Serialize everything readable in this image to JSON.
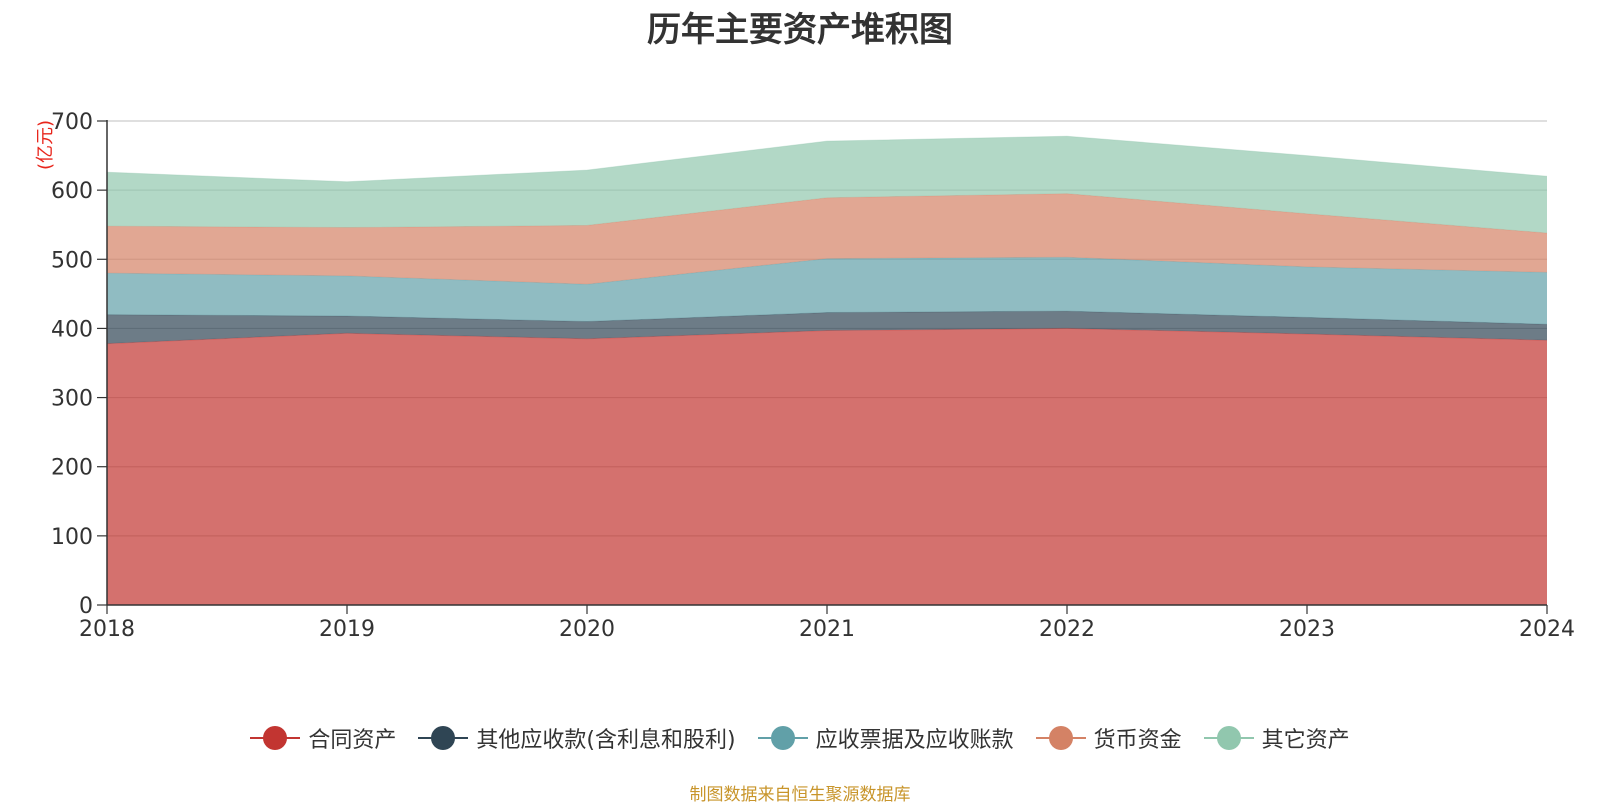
{
  "chart_data": {
    "type": "area",
    "stacked": true,
    "title": "历年主要资产堆积图",
    "unit_label": "(亿元)",
    "x": [
      "2018",
      "2019",
      "2020",
      "2021",
      "2022",
      "2023",
      "2024"
    ],
    "ylim": [
      0,
      700
    ],
    "yticks": [
      0,
      100,
      200,
      300,
      400,
      500,
      600,
      700
    ],
    "grid": true,
    "legend_position": "bottom",
    "series": [
      {
        "name": "合同资产",
        "color": "#c23531",
        "values": [
          378,
          393,
          385,
          397,
          400,
          392,
          383
        ]
      },
      {
        "name": "其他应收款(含利息和股利)",
        "color": "#2f4554",
        "values": [
          42,
          25,
          25,
          26,
          25,
          24,
          23
        ]
      },
      {
        "name": "应收票据及应收账款",
        "color": "#61a0a8",
        "values": [
          60,
          58,
          54,
          78,
          78,
          73,
          75
        ]
      },
      {
        "name": "货币资金",
        "color": "#d48265",
        "values": [
          68,
          70,
          85,
          88,
          92,
          77,
          57
        ]
      },
      {
        "name": "其它资产",
        "color": "#91c7ae",
        "values": [
          78,
          66,
          80,
          82,
          83,
          84,
          82
        ]
      }
    ]
  },
  "source_text": "制图数据来自恒生聚源数据库"
}
